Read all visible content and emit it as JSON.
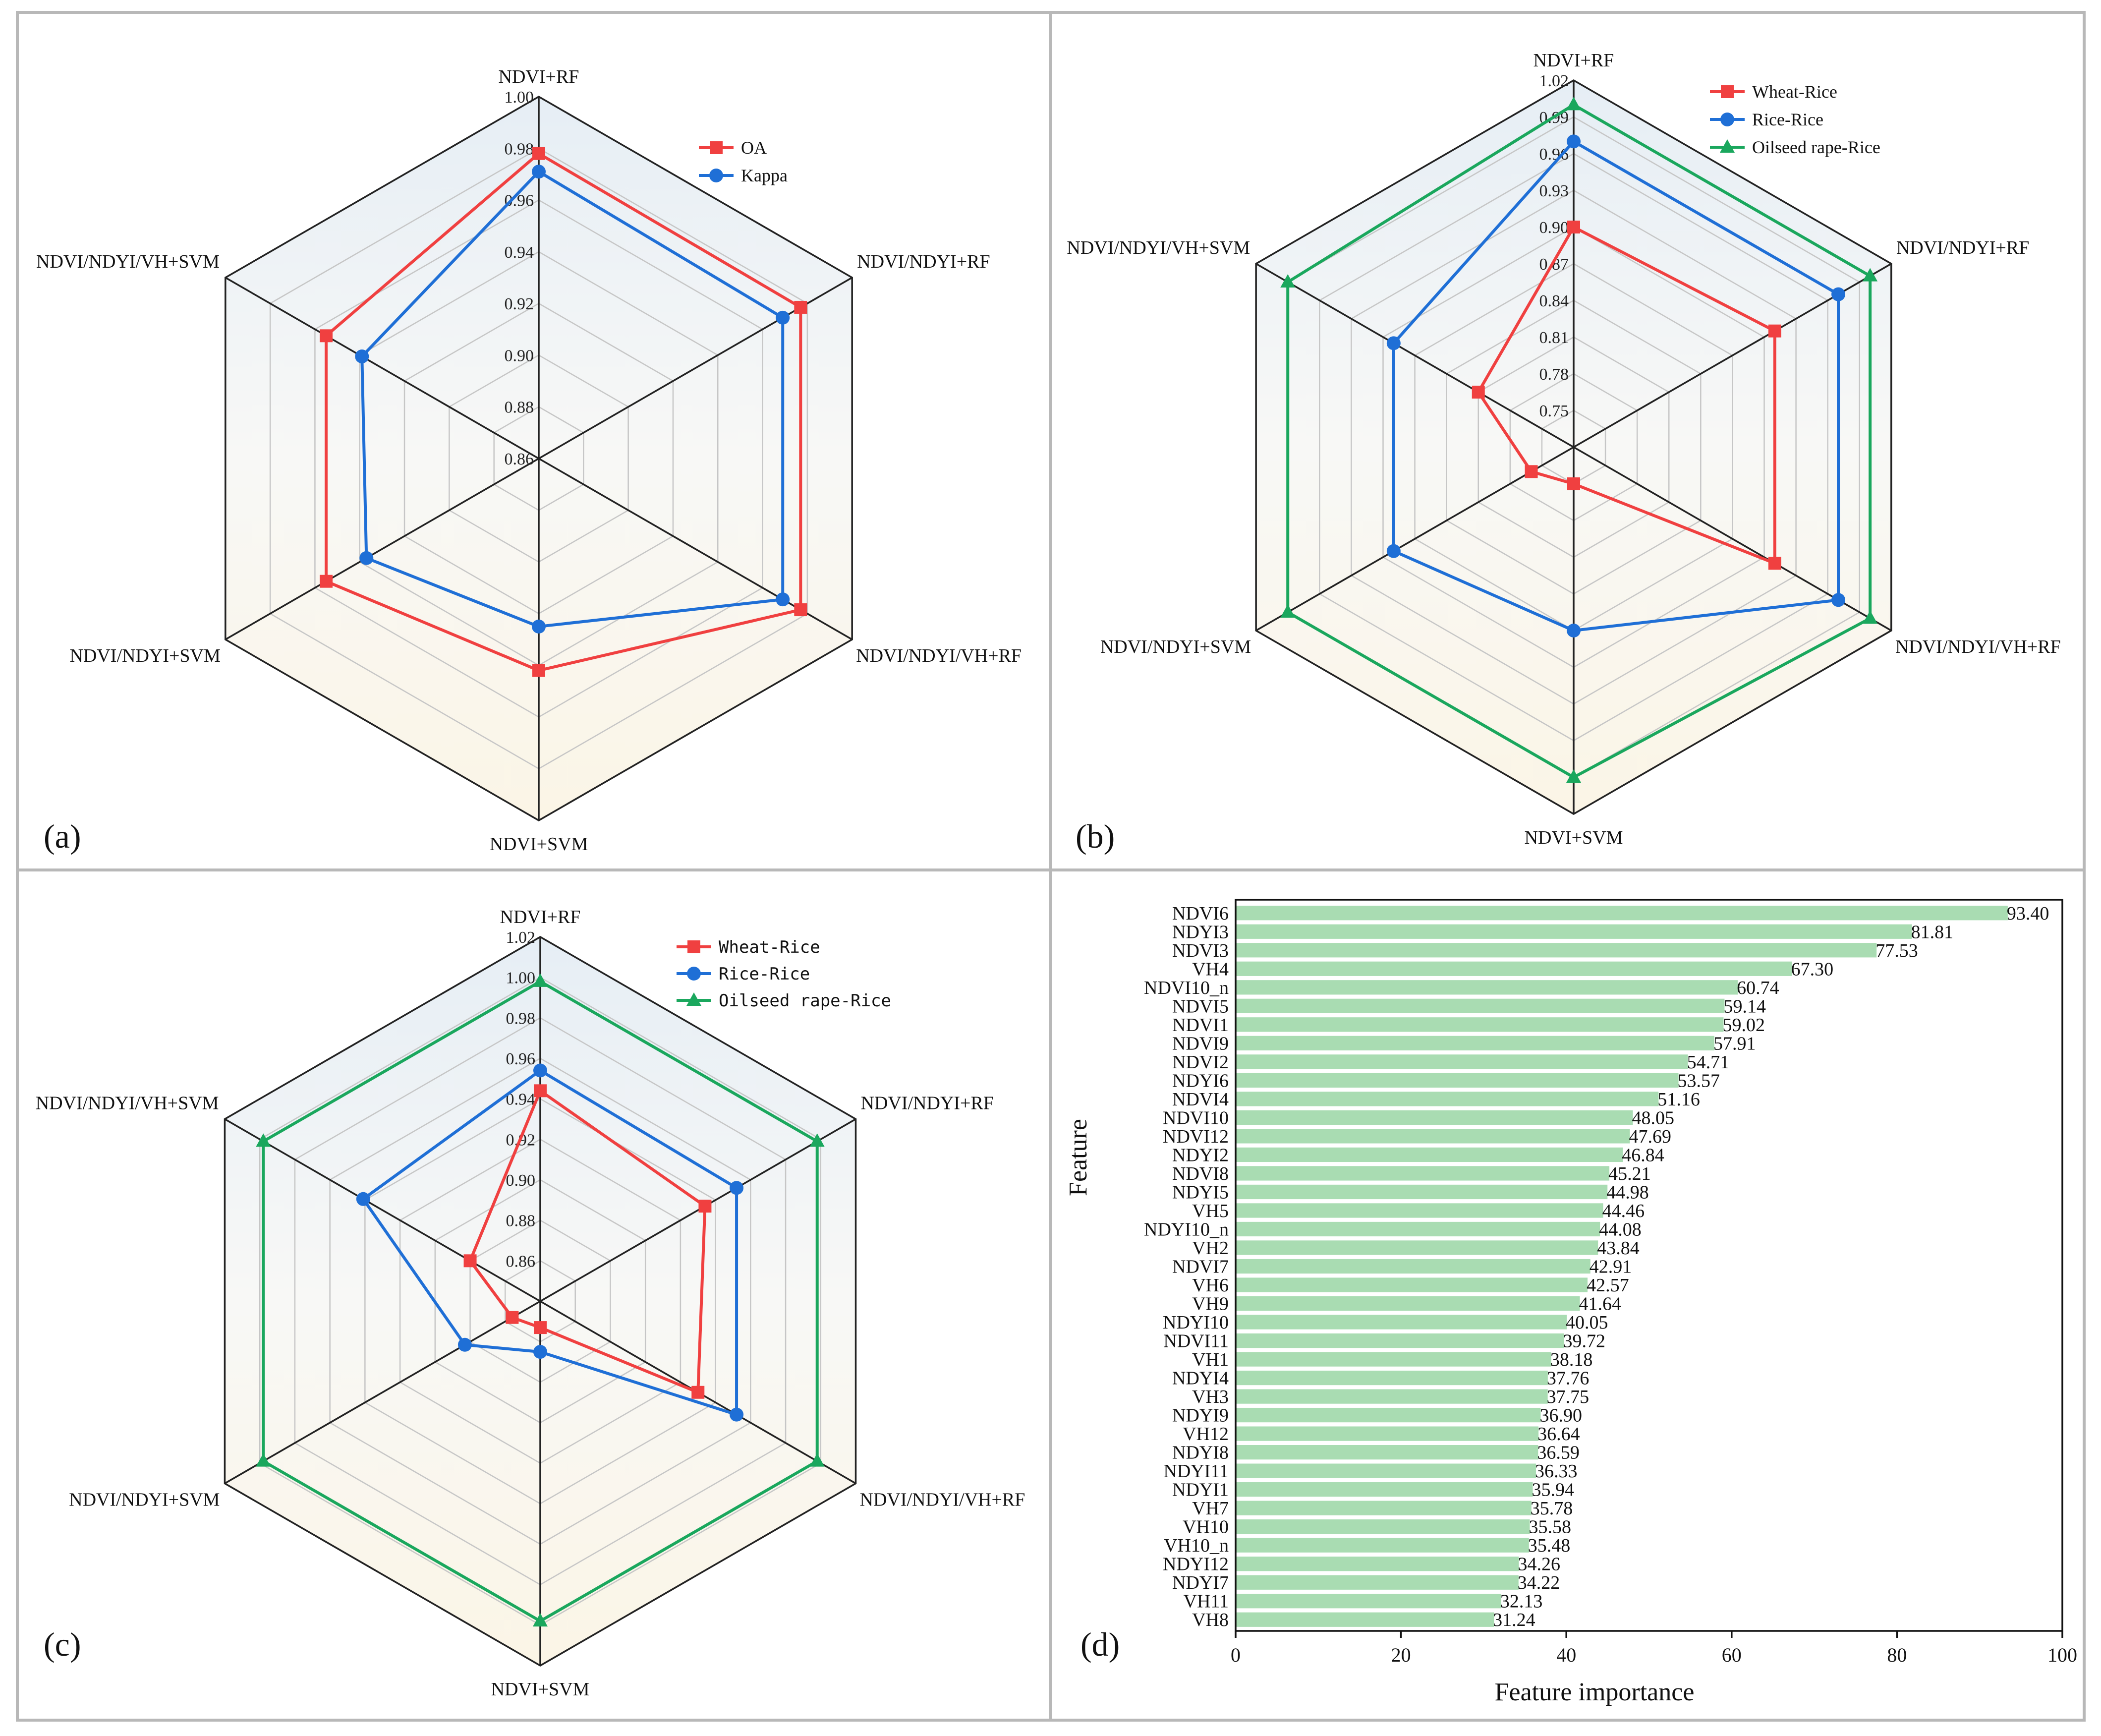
{
  "colors": {
    "red": "#f04040",
    "blue": "#1f6fd6",
    "green": "#1aa75d"
  },
  "panel_labels": [
    "(a)",
    "(b)",
    "(c)",
    "(d)"
  ],
  "chart_data": [
    {
      "type": "radar",
      "panel": "(a)",
      "axes": [
        "NDVI+RF",
        "NDVI/NDYI+RF",
        "NDVI/NDYI/VH+RF",
        "NDVI+SVM",
        "NDVI/NDYI+SVM",
        "NDVI/NDYI/VH+SVM"
      ],
      "radial_range": [
        0.86,
        1.0
      ],
      "radial_ticks": [
        "1.00",
        "0.98",
        "0.96",
        "0.94",
        "0.92",
        "0.90",
        "0.88",
        "0.86"
      ],
      "legend": [
        "OA",
        "Kappa"
      ],
      "series": [
        {
          "name": "OA",
          "marker": "square",
          "values": [
            0.978,
            0.977,
            0.977,
            0.942,
            0.955,
            0.955
          ]
        },
        {
          "name": "Kappa",
          "marker": "circle",
          "values": [
            0.971,
            0.969,
            0.969,
            0.925,
            0.937,
            0.939
          ]
        }
      ]
    },
    {
      "type": "radar",
      "panel": "(b)",
      "axes": [
        "NDVI+RF",
        "NDVI/NDYI+RF",
        "NDVI/NDYI/VH+RF",
        "NDVI+SVM",
        "NDVI/NDYI+SVM",
        "NDVI/NDYI/VH+SVM"
      ],
      "radial_range": [
        0.72,
        1.02
      ],
      "radial_ticks": [
        "1.02",
        "0.99",
        "0.96",
        "0.93",
        "0.90",
        "0.87",
        "0.84",
        "0.81",
        "0.78",
        "0.75"
      ],
      "legend": [
        "Wheat-Rice",
        "Rice-Rice",
        "Oilseed rape-Rice"
      ],
      "series": [
        {
          "name": "Wheat-Rice",
          "marker": "square",
          "values": [
            0.9,
            0.91,
            0.91,
            0.75,
            0.76,
            0.81
          ]
        },
        {
          "name": "Rice-Rice",
          "marker": "circle",
          "values": [
            0.97,
            0.97,
            0.97,
            0.87,
            0.89,
            0.89
          ]
        },
        {
          "name": "Oilseed rape-Rice",
          "marker": "triangle",
          "values": [
            1.0,
            1.0,
            1.0,
            0.99,
            0.99,
            0.99
          ]
        }
      ]
    },
    {
      "type": "radar",
      "panel": "(c)",
      "axes": [
        "NDVI+RF",
        "NDVI/NDYI+RF",
        "NDVI/NDYI/VH+RF",
        "NDVI+SVM",
        "NDVI/NDYI+SVM",
        "NDVI/NDYI/VH+SVM"
      ],
      "radial_range": [
        0.84,
        1.02
      ],
      "radial_ticks": [
        "1.02",
        "1.00",
        "0.98",
        "0.96",
        "0.94",
        "0.92",
        "0.90",
        "0.88",
        "0.86"
      ],
      "legend": [
        "Wheat-Rice",
        "Rice-Rice",
        "Oilseed rape-Rice"
      ],
      "series": [
        {
          "name": "Wheat-Rice",
          "marker": "square",
          "values": [
            0.944,
            0.934,
            0.93,
            0.853,
            0.856,
            0.88
          ]
        },
        {
          "name": "Rice-Rice",
          "marker": "circle",
          "values": [
            0.954,
            0.952,
            0.952,
            0.865,
            0.883,
            0.941
          ]
        },
        {
          "name": "Oilseed rape-Rice",
          "marker": "triangle",
          "values": [
            0.998,
            0.998,
            0.998,
            0.998,
            0.998,
            0.998
          ]
        }
      ]
    },
    {
      "type": "bar",
      "panel": "(d)",
      "orientation": "horizontal",
      "ylabel": "Feature",
      "xlabel": "Feature importance",
      "xlim": [
        0,
        100
      ],
      "xticks": [
        "0",
        "20",
        "40",
        "60",
        "80",
        "100"
      ],
      "categories": [
        "NDVI6",
        "NDYI3",
        "NDVI3",
        "VH4",
        "NDVI10_n",
        "NDVI5",
        "NDVI1",
        "NDVI9",
        "NDVI2",
        "NDYI6",
        "NDVI4",
        "NDVI10",
        "NDVI12",
        "NDYI2",
        "NDVI8",
        "NDYI5",
        "VH5",
        "NDYI10_n",
        "VH2",
        "NDVI7",
        "VH6",
        "VH9",
        "NDYI10",
        "NDVI11",
        "VH1",
        "NDYI4",
        "VH3",
        "NDYI9",
        "VH12",
        "NDYI8",
        "NDYI11",
        "NDYI1",
        "VH7",
        "VH10",
        "VH10_n",
        "NDYI12",
        "NDYI7",
        "VH11",
        "VH8"
      ],
      "values": [
        93.4,
        81.81,
        77.53,
        67.3,
        60.74,
        59.14,
        59.02,
        57.91,
        54.71,
        53.57,
        51.16,
        48.05,
        47.69,
        46.84,
        45.21,
        44.98,
        44.46,
        44.08,
        43.84,
        42.91,
        42.57,
        41.64,
        40.05,
        39.72,
        38.18,
        37.76,
        37.75,
        36.9,
        36.64,
        36.59,
        36.33,
        35.94,
        35.78,
        35.58,
        35.48,
        34.26,
        34.22,
        32.13,
        31.24
      ],
      "value_labels": [
        "93.40",
        "81.81",
        "77.53",
        "67.30",
        "60.74",
        "59.14",
        "59.02",
        "57.91",
        "54.71",
        "53.57",
        "51.16",
        "48.05",
        "47.69",
        "46.84",
        "45.21",
        "44.98",
        "44.46",
        "44.08",
        "43.84",
        "42.91",
        "42.57",
        "41.64",
        "40.05",
        "39.72",
        "38.18",
        "37.76",
        "37.75",
        "36.90",
        "36.64",
        "36.59",
        "36.33",
        "35.94",
        "35.78",
        "35.58",
        "35.48",
        "34.26",
        "34.22",
        "32.13",
        "31.24"
      ]
    }
  ]
}
